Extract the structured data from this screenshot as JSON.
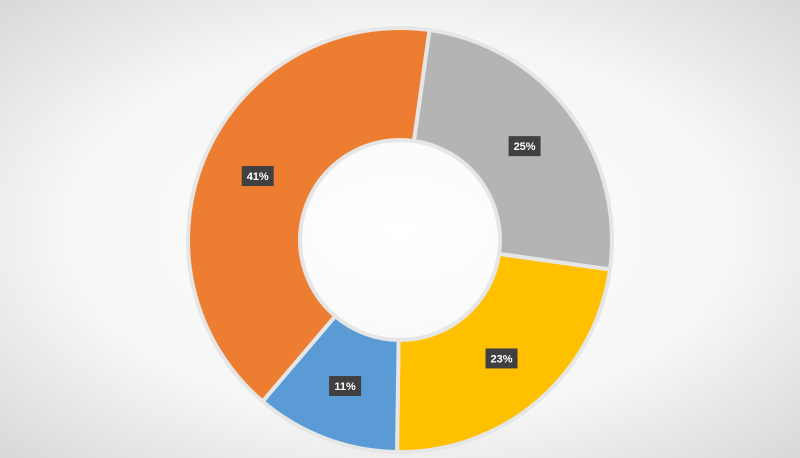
{
  "chart_data": {
    "type": "donut",
    "values": [
      25,
      23,
      11,
      41
    ],
    "value_labels": [
      "25%",
      "23%",
      "11%",
      "41%"
    ],
    "colors": [
      "#b4b4b4",
      "#ffc000",
      "#5b9bd5",
      "#ed7d31"
    ]
  }
}
